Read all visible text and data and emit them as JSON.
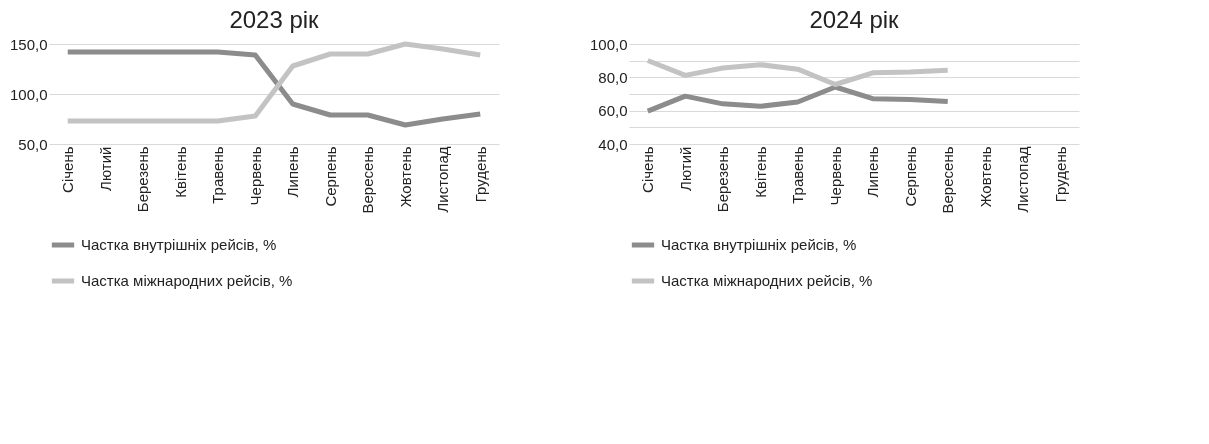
{
  "chart_data": [
    {
      "type": "line",
      "title": "2023 рік",
      "categories": [
        "Січень",
        "Лютий",
        "Березень",
        "Квітень",
        "Травень",
        "Червень",
        "Липень",
        "Серпень",
        "Вересень",
        "Жовтень",
        "Листопад",
        "Грудень"
      ],
      "series": [
        {
          "name": "Частка внутрішніх рейсів, %",
          "color": "#8c8c8c",
          "values": [
            142,
            142,
            142,
            142,
            142,
            139,
            90,
            79,
            79,
            69,
            75,
            80
          ]
        },
        {
          "name": "Частка міжнародних рейсів, %",
          "color": "#c3c3c3",
          "values": [
            73,
            73,
            73,
            73,
            73,
            78,
            128,
            140,
            140,
            150,
            145,
            139
          ]
        }
      ],
      "ylim": [
        50,
        150
      ],
      "yticks": [
        {
          "value": 50,
          "label": "50,0"
        },
        {
          "value": 100,
          "label": "100,0"
        },
        {
          "value": 150,
          "label": "150,0"
        }
      ],
      "grid": "y",
      "legend": "bottom",
      "marker": "none",
      "line_style": "solid"
    },
    {
      "type": "line",
      "title": "2024 рік",
      "categories": [
        "Січень",
        "Лютий",
        "Березень",
        "Квітень",
        "Травень",
        "Червень",
        "Липень",
        "Серпень",
        "Вересень",
        "Жовтень",
        "Листопад",
        "Грудень"
      ],
      "series": [
        {
          "name": "Частка внутрішніх рейсів, %",
          "color": "#8c8c8c",
          "values": [
            59.7,
            68.7,
            64.1,
            62.6,
            65.2,
            74.2,
            67.2,
            66.7,
            65.5,
            null,
            null,
            null
          ]
        },
        {
          "name": "Частка міжнародних рейсів, %",
          "color": "#c3c3c3",
          "values": [
            90.1,
            81.2,
            85.6,
            87.6,
            84.9,
            75.7,
            82.7,
            83.2,
            84.3,
            null,
            null,
            null
          ]
        }
      ],
      "ylim": [
        40,
        100
      ],
      "yticks": [
        {
          "value": 40,
          "label": "40,0"
        },
        {
          "value": 50,
          "label": null
        },
        {
          "value": 60,
          "label": "60,0"
        },
        {
          "value": 70,
          "label": null
        },
        {
          "value": 80,
          "label": "80,0"
        },
        {
          "value": 90,
          "label": null
        },
        {
          "value": 100,
          "label": "100,0"
        }
      ],
      "grid": "y",
      "legend": "bottom",
      "marker": "none",
      "line_style": "solid"
    }
  ]
}
